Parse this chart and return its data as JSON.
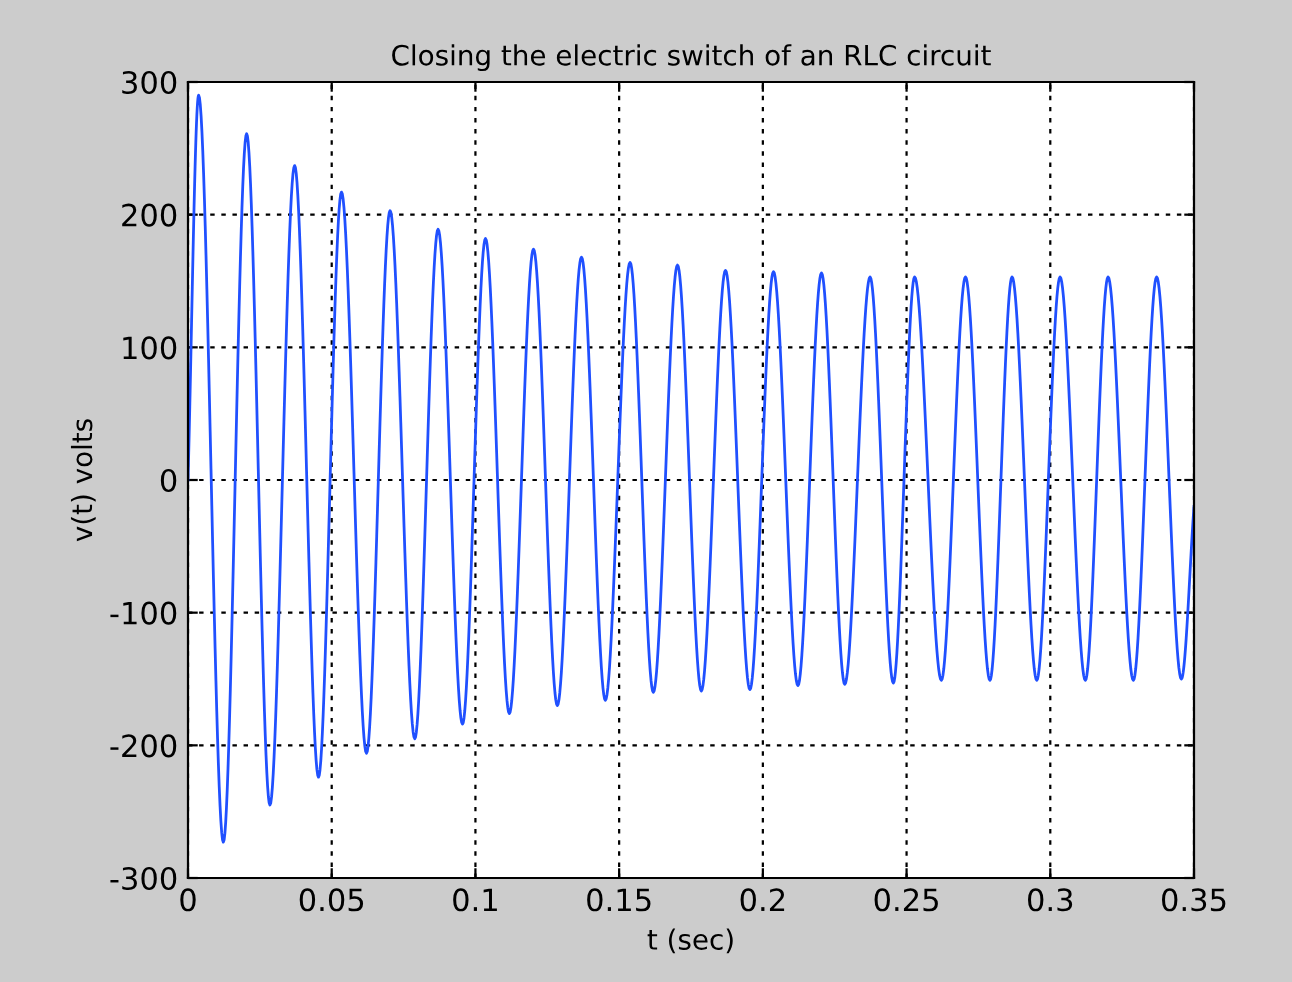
{
  "chart_data": {
    "type": "line",
    "title": "Closing the electric switch of an RLC circuit",
    "xlabel": "t (sec)",
    "ylabel": "v(t) volts",
    "series": [
      {
        "color": "#2050ff",
        "x": [
          0,
          0.0037,
          0.0123,
          0.0204,
          0.0285,
          0.0371,
          0.0454,
          0.0534,
          0.0621,
          0.0703,
          0.0789,
          0.087,
          0.0955,
          0.1035,
          0.1118,
          0.1202,
          0.1285,
          0.1369,
          0.1452,
          0.1538,
          0.1619,
          0.1703,
          0.1786,
          0.187,
          0.1955,
          0.2037,
          0.2122,
          0.2204,
          0.2285,
          0.2373,
          0.2454,
          0.2528,
          0.2621,
          0.2705,
          0.279,
          0.2867,
          0.2953,
          0.3034,
          0.3122,
          0.3201,
          0.3289,
          0.337,
          0.3456,
          0.35
        ],
        "values": [
          0,
          290,
          -273,
          261,
          -245,
          237,
          -224,
          217,
          -206,
          203,
          -195,
          189,
          -184,
          182,
          -176,
          174,
          -170,
          168,
          -166,
          164,
          -160,
          162,
          -159,
          158,
          -158,
          157,
          -155,
          156,
          -154,
          153,
          -153,
          153,
          -151,
          153,
          -151,
          153,
          -151,
          153,
          -151,
          153,
          -151,
          153,
          -150,
          -20
        ]
      }
    ],
    "xlim": [
      0,
      0.35
    ],
    "xticks": [
      0,
      0.05,
      0.1,
      0.15,
      0.2,
      0.25,
      0.3,
      0.35
    ],
    "ylim": [
      -300,
      300
    ],
    "yticks": [
      -300,
      -200,
      -100,
      0,
      100,
      200,
      300
    ],
    "grid": true,
    "legend": false,
    "marker": "none",
    "line_style": "solid"
  }
}
